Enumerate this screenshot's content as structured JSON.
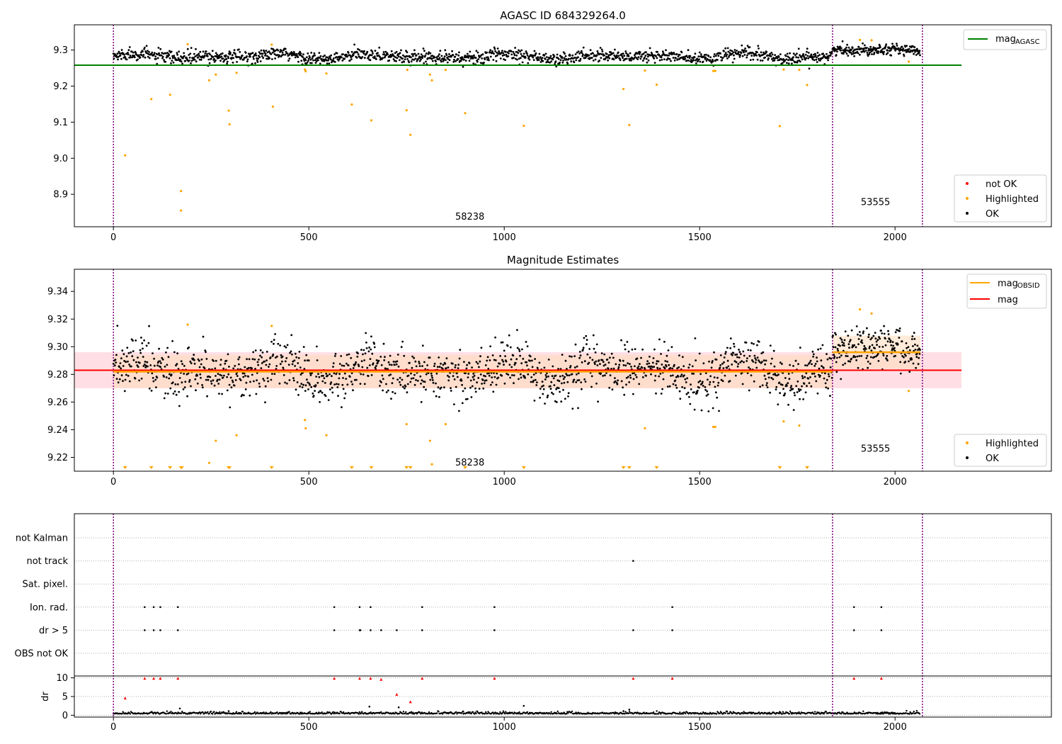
{
  "figure": {
    "title_top": "AGASC ID 684329264.0",
    "title_mid": "Magnitude Estimates"
  },
  "colors": {
    "ok": "#000000",
    "highlighted": "#ffa500",
    "not_ok": "#ff0000",
    "mag_agasc": "#008000",
    "mag_obsid": "#ffa500",
    "mag": "#ff0000",
    "obsid_boundary": "#800080",
    "band_mag": "#ffc0cb",
    "band_obsid": "#ffdab9",
    "grid": "#b0b0b0"
  },
  "chart_data": [
    {
      "type": "scatter",
      "title": "AGASC ID 684329264.0",
      "xlim": [
        -100,
        2400
      ],
      "ylim": [
        8.81,
        9.37
      ],
      "xticks": [
        0,
        500,
        1000,
        1500,
        2000
      ],
      "yticks": [
        8.9,
        9.0,
        9.1,
        9.2,
        9.3
      ],
      "ytick_labels": [
        "8.9",
        "9.0",
        "9.1",
        "9.2",
        "9.3"
      ],
      "obsid_boundaries": [
        0,
        1840,
        2070
      ],
      "obsid_labels": [
        {
          "text": "58238",
          "x": 912,
          "y": 8.83
        },
        {
          "text": "53555",
          "x": 1950,
          "y": 8.87
        }
      ],
      "mag_agasc_line": {
        "y": 9.258,
        "x": [
          -100,
          2170
        ]
      },
      "legend": {
        "position": "upper right",
        "entries": [
          {
            "label": "mag",
            "sub": "AGASC"
          }
        ]
      },
      "legend2": {
        "position": "lower right",
        "entries": [
          "not OK",
          "Highlighted",
          "OK"
        ]
      },
      "ok_series": [
        {
          "x0": 0,
          "x1": 1840,
          "base": 9.282,
          "spread": 0.011,
          "wave": 0.009,
          "n": 1450
        },
        {
          "x0": 1840,
          "x1": 2065,
          "base": 9.3,
          "spread": 0.009,
          "wave": 0.006,
          "n": 210
        }
      ],
      "highlighted": [
        [
          30,
          9.008
        ],
        [
          97,
          9.164
        ],
        [
          145,
          9.176
        ],
        [
          173,
          8.909
        ],
        [
          173,
          8.855
        ],
        [
          190,
          9.316
        ],
        [
          245,
          9.216
        ],
        [
          262,
          9.232
        ],
        [
          295,
          9.132
        ],
        [
          297,
          9.094
        ],
        [
          315,
          9.237
        ],
        [
          405,
          9.315
        ],
        [
          408,
          9.143
        ],
        [
          490,
          9.246
        ],
        [
          492,
          9.241
        ],
        [
          545,
          9.235
        ],
        [
          610,
          9.149
        ],
        [
          660,
          9.105
        ],
        [
          750,
          9.133
        ],
        [
          752,
          9.245
        ],
        [
          760,
          9.065
        ],
        [
          810,
          9.232
        ],
        [
          815,
          9.216
        ],
        [
          850,
          9.245
        ],
        [
          900,
          9.125
        ],
        [
          1050,
          9.09
        ],
        [
          1305,
          9.192
        ],
        [
          1320,
          9.092
        ],
        [
          1360,
          9.243
        ],
        [
          1390,
          9.204
        ],
        [
          1535,
          9.242
        ],
        [
          1540,
          9.242
        ],
        [
          1705,
          9.089
        ],
        [
          1715,
          9.246
        ],
        [
          1755,
          9.245
        ],
        [
          1775,
          9.203
        ],
        [
          1910,
          9.328
        ],
        [
          1940,
          9.327
        ],
        [
          2035,
          9.268
        ]
      ]
    },
    {
      "type": "scatter",
      "title": "Magnitude Estimates",
      "xlim": [
        -100,
        2400
      ],
      "ylim": [
        9.21,
        9.356
      ],
      "xticks": [
        0,
        500,
        1000,
        1500,
        2000
      ],
      "yticks": [
        9.22,
        9.24,
        9.26,
        9.28,
        9.3,
        9.32,
        9.34
      ],
      "ytick_labels": [
        "9.22",
        "9.24",
        "9.26",
        "9.28",
        "9.30",
        "9.32",
        "9.34"
      ],
      "obsid_boundaries": [
        0,
        1840,
        2070
      ],
      "obsid_labels": [
        {
          "text": "58238",
          "x": 912,
          "y": 9.214
        },
        {
          "text": "53555",
          "x": 1950,
          "y": 9.224
        }
      ],
      "mag_line": {
        "y": 9.283,
        "x": [
          -100,
          2170
        ]
      },
      "mag_band": {
        "y0": 9.27,
        "y1": 9.296
      },
      "mag_obsid_segments": [
        {
          "x0": 0,
          "x1": 1840,
          "y": 9.282
        },
        {
          "x0": 1840,
          "x1": 2065,
          "y": 9.296
        }
      ],
      "obsid_bands": [
        {
          "x0": 0,
          "x1": 1840,
          "y0": 9.27,
          "y1": 9.294
        },
        {
          "x0": 1840,
          "x1": 2065,
          "y0": 9.284,
          "y1": 9.308
        }
      ],
      "legend": {
        "position": "upper right",
        "entries": [
          {
            "label": "mag",
            "sub": "OBSID"
          },
          {
            "label": "mag",
            "sub": ""
          }
        ]
      },
      "legend2": {
        "position": "lower right",
        "entries": [
          "Highlighted",
          "OK"
        ]
      },
      "ok_series": [
        {
          "x0": 0,
          "x1": 1840,
          "base": 9.282,
          "spread": 0.011,
          "wave": 0.009,
          "n": 1450
        },
        {
          "x0": 1840,
          "x1": 2065,
          "base": 9.298,
          "spread": 0.009,
          "wave": 0.006,
          "n": 210
        }
      ],
      "highlighted": [
        [
          190,
          9.316
        ],
        [
          245,
          9.216
        ],
        [
          262,
          9.232
        ],
        [
          315,
          9.236
        ],
        [
          405,
          9.315
        ],
        [
          490,
          9.247
        ],
        [
          492,
          9.241
        ],
        [
          545,
          9.236
        ],
        [
          750,
          9.244
        ],
        [
          810,
          9.232
        ],
        [
          815,
          9.215
        ],
        [
          850,
          9.244
        ],
        [
          1360,
          9.241
        ],
        [
          1535,
          9.242
        ],
        [
          1540,
          9.242
        ],
        [
          1715,
          9.246
        ],
        [
          1755,
          9.243
        ],
        [
          1910,
          9.327
        ],
        [
          1940,
          9.324
        ],
        [
          2035,
          9.268
        ]
      ],
      "offscale_markers_x": [
        30,
        97,
        145,
        173,
        175,
        295,
        297,
        405,
        610,
        660,
        750,
        760,
        900,
        1050,
        1305,
        1320,
        1390,
        1705,
        1775
      ]
    },
    {
      "type": "scatter",
      "title": "",
      "xlim": [
        -100,
        2400
      ],
      "xticks": [
        0,
        500,
        1000,
        1500,
        2000
      ],
      "obsid_boundaries": [
        0,
        1840,
        2070
      ],
      "flag_categories": [
        "not Kalman",
        "not track",
        "Sat. pixel.",
        "Ion. rad.",
        "dr > 5",
        "OBS not OK"
      ],
      "flag_points": {
        "not Kalman": [],
        "not track": [
          1330
        ],
        "Sat. pixel.": [],
        "Ion. rad.": [
          80,
          103,
          120,
          165,
          565,
          630,
          658,
          790,
          975,
          1430,
          1895,
          1965
        ],
        "dr > 5": [
          80,
          103,
          120,
          165,
          565,
          630,
          632,
          658,
          685,
          725,
          790,
          975,
          1330,
          1430,
          1895,
          1965
        ],
        "OBS not OK": []
      },
      "dr_ylabel": "dr",
      "dr_ylim": [
        -0.5,
        10.5
      ],
      "dr_yticks": [
        0,
        5,
        10
      ],
      "dr_ytick_labels": [
        "0",
        "5",
        "10"
      ],
      "dr_high_points": [
        [
          30,
          4.5
        ],
        [
          80,
          9.8
        ],
        [
          103,
          9.8
        ],
        [
          120,
          9.8
        ],
        [
          165,
          9.8
        ],
        [
          565,
          9.8
        ],
        [
          630,
          9.8
        ],
        [
          658,
          9.8
        ],
        [
          685,
          9.5
        ],
        [
          725,
          5.5
        ],
        [
          760,
          3.5
        ],
        [
          790,
          9.8
        ],
        [
          975,
          9.8
        ],
        [
          1330,
          9.8
        ],
        [
          1430,
          9.8
        ],
        [
          1895,
          9.8
        ],
        [
          1965,
          9.8
        ]
      ],
      "dr_low_bumps": [
        [
          170,
          1.8
        ],
        [
          295,
          1.1
        ],
        [
          655,
          2.3
        ],
        [
          730,
          2.1
        ],
        [
          895,
          1.0
        ],
        [
          1050,
          2.5
        ],
        [
          1305,
          1.1
        ],
        [
          1320,
          1.5
        ],
        [
          1570,
          1.0
        ],
        [
          1705,
          0.9
        ]
      ]
    }
  ]
}
